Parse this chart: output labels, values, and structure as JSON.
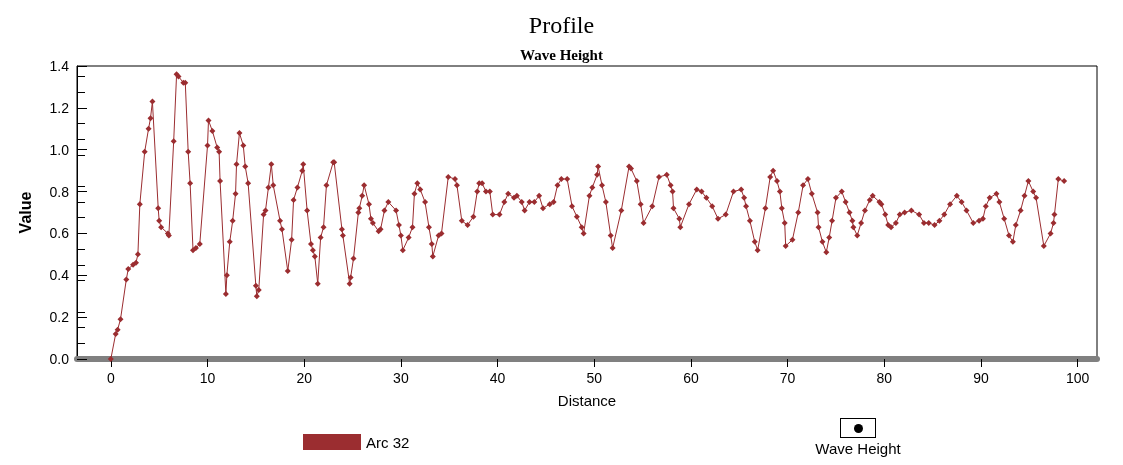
{
  "chart_data": {
    "type": "line",
    "title": "Profile",
    "subtitle": "Wave Height",
    "xlabel": "Distance",
    "ylabel": "Value",
    "annotations": [
      "Wave Height"
    ],
    "xlim": [
      -3.5,
      102
    ],
    "xticks": [
      0,
      10,
      20,
      30,
      40,
      50,
      60,
      70,
      80,
      90,
      100
    ],
    "ylim": [
      0,
      1.4
    ],
    "yticks": [
      {
        "value": 0,
        "label": "0.0"
      },
      {
        "value": 0.2,
        "label": "0.2"
      },
      {
        "value": 0.4,
        "label": "0.4"
      },
      {
        "value": 0.6,
        "label": "0.6"
      },
      {
        "value": 0.8,
        "label": "0.8"
      },
      {
        "value": 1,
        "label": "1.0"
      },
      {
        "value": 1.2,
        "label": "1.2"
      },
      {
        "value": 1.4,
        "label": "1.4"
      }
    ],
    "grid": false,
    "legend": "bottom",
    "marker": "diamond",
    "line_style": "solid",
    "series": [
      {
        "name": "Arc 32",
        "color": "#9b2d30",
        "x": [
          0,
          0.5,
          0.7,
          1.0,
          1.6,
          1.8,
          2.3,
          2.6,
          2.8,
          3.0,
          3.5,
          3.9,
          4.1,
          4.3,
          4.9,
          5.0,
          5.2,
          5.9,
          6.0,
          6.5,
          6.8,
          7.0,
          7.5,
          7.7,
          8.0,
          8.2,
          8.5,
          8.8,
          9.2,
          10.0,
          10.1,
          10.5,
          11.0,
          11.2,
          11.3,
          11.9,
          12.0,
          12.3,
          12.6,
          12.9,
          13.0,
          13.3,
          13.7,
          13.9,
          14.2,
          15.0,
          15.1,
          15.3,
          15.8,
          16.0,
          16.3,
          16.6,
          16.8,
          17.5,
          17.7,
          18.3,
          18.7,
          18.9,
          19.3,
          19.8,
          19.9,
          20.3,
          20.7,
          20.9,
          21.1,
          21.4,
          21.7,
          22.0,
          22.3,
          23.0,
          23.1,
          23.9,
          24.0,
          24.7,
          24.8,
          25.1,
          25.6,
          25.7,
          26.0,
          26.2,
          26.7,
          26.9,
          27.1,
          27.7,
          27.9,
          28.3,
          28.7,
          29.5,
          29.8,
          30.0,
          30.2,
          30.8,
          31.2,
          31.4,
          31.7,
          32.0,
          32.5,
          32.9,
          33.2,
          33.3,
          33.9,
          34.2,
          34.9,
          35.6,
          35.8,
          36.3,
          36.9,
          37.5,
          37.9,
          38.1,
          38.4,
          38.8,
          39.2,
          39.5,
          40.2,
          40.7,
          41.1,
          41.7,
          42.0,
          42.5,
          42.8,
          43.3,
          43.8,
          44.3,
          44.7,
          45.4,
          45.8,
          46.2,
          46.6,
          47.2,
          47.7,
          48.2,
          48.7,
          48.9,
          49.5,
          49.8,
          50.3,
          50.4,
          50.8,
          51.2,
          51.7,
          51.9,
          52.8,
          53.6,
          53.8,
          54.4,
          54.8,
          55.1,
          56.0,
          56.7,
          57.5,
          57.9,
          58.1,
          58.2,
          58.8,
          58.9,
          59.8,
          60.6,
          61.1,
          61.6,
          62.2,
          62.8,
          63.6,
          64.4,
          65.2,
          65.5,
          65.7,
          66.1,
          66.6,
          66.9,
          67.7,
          68.2,
          68.5,
          68.9,
          69.2,
          69.4,
          69.7,
          69.8,
          70.5,
          71.1,
          71.6,
          72.1,
          72.5,
          73.1,
          73.2,
          73.6,
          74.0,
          74.3,
          74.6,
          75.0,
          75.6,
          76.0,
          76.4,
          76.7,
          76.8,
          77.2,
          77.6,
          78.0,
          78.5,
          78.8,
          79.5,
          79.7,
          80.1,
          80.4,
          80.7,
          81.2,
          81.6,
          82.1,
          82.8,
          83.6,
          84.1,
          84.6,
          85.2,
          85.7,
          86.2,
          86.8,
          87.5,
          88.0,
          88.5,
          89.2,
          89.8,
          90.2,
          90.5,
          90.9,
          91.6,
          91.9,
          92.4,
          92.9,
          93.3,
          93.6,
          94.1,
          94.5,
          94.9,
          95.4,
          95.7,
          96.5,
          97.2,
          97.5,
          97.6,
          98.0,
          98.6
        ],
        "values": [
          0.0,
          0.12,
          0.14,
          0.19,
          0.38,
          0.43,
          0.45,
          0.46,
          0.5,
          0.74,
          0.99,
          1.1,
          1.15,
          1.23,
          0.72,
          0.66,
          0.63,
          0.6,
          0.59,
          1.04,
          1.36,
          1.35,
          1.32,
          1.32,
          0.99,
          0.84,
          0.52,
          0.53,
          0.55,
          1.02,
          1.14,
          1.09,
          1.01,
          0.99,
          0.85,
          0.31,
          0.4,
          0.56,
          0.66,
          0.79,
          0.93,
          1.08,
          1.02,
          0.92,
          0.84,
          0.35,
          0.3,
          0.33,
          0.69,
          0.71,
          0.82,
          0.93,
          0.83,
          0.66,
          0.62,
          0.42,
          0.57,
          0.76,
          0.82,
          0.9,
          0.93,
          0.71,
          0.55,
          0.52,
          0.49,
          0.36,
          0.58,
          0.63,
          0.83,
          0.94,
          0.94,
          0.62,
          0.59,
          0.36,
          0.39,
          0.48,
          0.7,
          0.72,
          0.78,
          0.83,
          0.74,
          0.67,
          0.65,
          0.61,
          0.62,
          0.71,
          0.75,
          0.71,
          0.64,
          0.59,
          0.52,
          0.58,
          0.63,
          0.79,
          0.84,
          0.81,
          0.75,
          0.63,
          0.55,
          0.49,
          0.59,
          0.6,
          0.87,
          0.86,
          0.83,
          0.66,
          0.64,
          0.68,
          0.8,
          0.84,
          0.84,
          0.8,
          0.8,
          0.69,
          0.69,
          0.75,
          0.79,
          0.77,
          0.78,
          0.75,
          0.71,
          0.75,
          0.75,
          0.78,
          0.72,
          0.74,
          0.75,
          0.83,
          0.86,
          0.86,
          0.73,
          0.68,
          0.63,
          0.6,
          0.78,
          0.82,
          0.88,
          0.92,
          0.83,
          0.75,
          0.59,
          0.53,
          0.71,
          0.92,
          0.91,
          0.85,
          0.74,
          0.65,
          0.73,
          0.87,
          0.88,
          0.83,
          0.8,
          0.72,
          0.67,
          0.63,
          0.74,
          0.81,
          0.8,
          0.77,
          0.73,
          0.67,
          0.69,
          0.8,
          0.81,
          0.77,
          0.73,
          0.66,
          0.56,
          0.52,
          0.72,
          0.87,
          0.9,
          0.85,
          0.8,
          0.72,
          0.65,
          0.54,
          0.57,
          0.7,
          0.83,
          0.86,
          0.79,
          0.7,
          0.63,
          0.56,
          0.51,
          0.58,
          0.66,
          0.77,
          0.8,
          0.75,
          0.7,
          0.66,
          0.63,
          0.59,
          0.65,
          0.71,
          0.76,
          0.78,
          0.75,
          0.74,
          0.69,
          0.64,
          0.63,
          0.65,
          0.69,
          0.7,
          0.71,
          0.69,
          0.65,
          0.65,
          0.64,
          0.66,
          0.69,
          0.74,
          0.78,
          0.75,
          0.71,
          0.65,
          0.66,
          0.67,
          0.73,
          0.77,
          0.79,
          0.75,
          0.67,
          0.59,
          0.56,
          0.64,
          0.71,
          0.78,
          0.85,
          0.8,
          0.77,
          0.54,
          0.6,
          0.65,
          0.69,
          0.86,
          0.85
        ]
      }
    ]
  }
}
